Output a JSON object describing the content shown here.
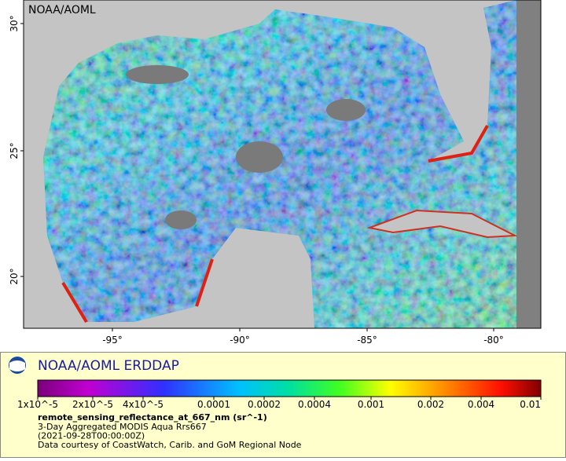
{
  "map": {
    "watermark": "NOAA/AOML",
    "lat_ticks": [
      "30°",
      "25°",
      "20°"
    ],
    "lon_ticks": [
      "-95°",
      "-90°",
      "-85°",
      "-80°"
    ]
  },
  "legend": {
    "title": "NOAA/AOML ERDDAP",
    "colorbar_labels": [
      "1x10^-5",
      "2x10^-5",
      "4x10^-5",
      "0.0001",
      "0.0002",
      "0.0004",
      "0.001",
      "0.002",
      "0.004",
      "0.01"
    ],
    "variable": "remote_sensing_reflectance_at_667_nm (sr^-1)",
    "lines": [
      "3-Day Aggregated MODIS Aqua Rrs667",
      "(2021-09-28T00:00:00Z)",
      "Data courtesy of CoastWatch, Carib. and GoM Regional Node"
    ]
  }
}
